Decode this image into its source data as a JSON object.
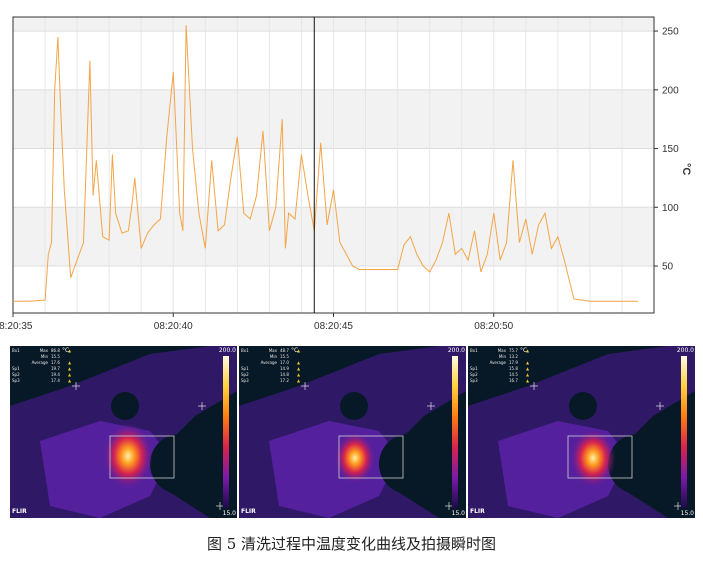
{
  "chart_data": {
    "type": "line",
    "x": [
      35.0,
      35.5,
      36.0,
      36.1,
      36.2,
      36.3,
      36.4,
      36.5,
      36.6,
      36.8,
      37.0,
      37.2,
      37.4,
      37.5,
      37.6,
      37.8,
      38.0,
      38.1,
      38.2,
      38.4,
      38.6,
      38.7,
      38.8,
      39.0,
      39.2,
      39.4,
      39.6,
      39.8,
      40.0,
      40.2,
      40.3,
      40.4,
      40.6,
      40.8,
      41.0,
      41.2,
      41.4,
      41.6,
      41.8,
      42.0,
      42.2,
      42.4,
      42.6,
      42.8,
      43.0,
      43.2,
      43.4,
      43.5,
      43.6,
      43.8,
      44.0,
      44.2,
      44.4,
      44.6,
      44.8,
      45.0,
      45.2,
      45.4,
      45.6,
      45.8,
      46.0,
      46.5,
      47.0,
      47.2,
      47.4,
      47.6,
      47.8,
      48.0,
      48.2,
      48.4,
      48.6,
      48.8,
      49.0,
      49.2,
      49.4,
      49.6,
      49.8,
      50.0,
      50.2,
      50.4,
      50.6,
      50.8,
      51.0,
      51.2,
      51.4,
      51.6,
      51.8,
      52.0,
      52.2,
      52.5,
      53.0,
      53.5,
      54.5
    ],
    "y": [
      20,
      20,
      21,
      60,
      70,
      200,
      245,
      175,
      115,
      40,
      55,
      70,
      225,
      110,
      140,
      75,
      72,
      145,
      95,
      78,
      80,
      100,
      125,
      65,
      78,
      85,
      90,
      160,
      215,
      95,
      80,
      255,
      150,
      95,
      65,
      140,
      80,
      85,
      125,
      160,
      95,
      90,
      110,
      165,
      80,
      100,
      175,
      65,
      95,
      90,
      145,
      110,
      80,
      155,
      85,
      115,
      70,
      60,
      50,
      47,
      47,
      47,
      47,
      68,
      75,
      60,
      50,
      45,
      55,
      70,
      95,
      60,
      65,
      55,
      80,
      45,
      60,
      95,
      55,
      70,
      140,
      70,
      90,
      60,
      85,
      95,
      65,
      75,
      55,
      22,
      20,
      20,
      20
    ],
    "xtick_labels": [
      "08:20:35",
      "08:20:40",
      "08:20:45",
      "08:20:50"
    ],
    "xtick_values": [
      35,
      40,
      45,
      50
    ],
    "yticks": [
      50,
      100,
      150,
      200,
      250
    ],
    "ylabel": "°C",
    "ylim": [
      10,
      262
    ],
    "xlim": [
      35,
      55
    ],
    "cursor_x": 44.4,
    "grid": true,
    "line_color": "#f4a548"
  },
  "thermal_panels": [
    {
      "readout": [
        {
          "name": "Bx1",
          "key": "Max",
          "value": "86.8",
          "warn": "▲"
        },
        {
          "name": "",
          "key": "Min",
          "value": "15.5",
          "warn": ""
        },
        {
          "name": "",
          "key": "Average",
          "value": "17.6",
          "warn": "▲"
        },
        {
          "name": "Sp1",
          "key": "",
          "value": "19.7",
          "warn": "▲"
        },
        {
          "name": "Sp2",
          "key": "",
          "value": "19.4",
          "warn": "▲"
        },
        {
          "name": "Sp3",
          "key": "",
          "value": "17.4",
          "warn": "▲"
        }
      ],
      "unit": "°C",
      "scale_max": "200.0",
      "scale_min": "15.0",
      "logo": "FLIR"
    },
    {
      "readout": [
        {
          "name": "Bx1",
          "key": "Max",
          "value": "48.7",
          "warn": "▲"
        },
        {
          "name": "",
          "key": "Min",
          "value": "15.5",
          "warn": ""
        },
        {
          "name": "",
          "key": "Average",
          "value": "17.0",
          "warn": "▲"
        },
        {
          "name": "Sp1",
          "key": "",
          "value": "14.9",
          "warn": "▲"
        },
        {
          "name": "Sp2",
          "key": "",
          "value": "14.8",
          "warn": "▲"
        },
        {
          "name": "Sp3",
          "key": "",
          "value": "17.2",
          "warn": "▲"
        }
      ],
      "unit": "°C",
      "scale_max": "200.0",
      "scale_min": "15.0",
      "logo": "FLIR"
    },
    {
      "readout": [
        {
          "name": "Bx1",
          "key": "Max",
          "value": "75.7",
          "warn": "▲"
        },
        {
          "name": "",
          "key": "Min",
          "value": "13.2",
          "warn": ""
        },
        {
          "name": "",
          "key": "Average",
          "value": "17.9",
          "warn": "▲"
        },
        {
          "name": "Sp1",
          "key": "",
          "value": "15.8",
          "warn": "▲"
        },
        {
          "name": "Sp2",
          "key": "",
          "value": "14.5",
          "warn": "▲"
        },
        {
          "name": "Sp3",
          "key": "",
          "value": "16.7",
          "warn": "▲"
        }
      ],
      "unit": "°C",
      "scale_max": "200.0",
      "scale_min": "15.0",
      "logo": "FLIR"
    }
  ],
  "caption": "图 5 清洗过程中温度变化曲线及拍摄瞬时图"
}
